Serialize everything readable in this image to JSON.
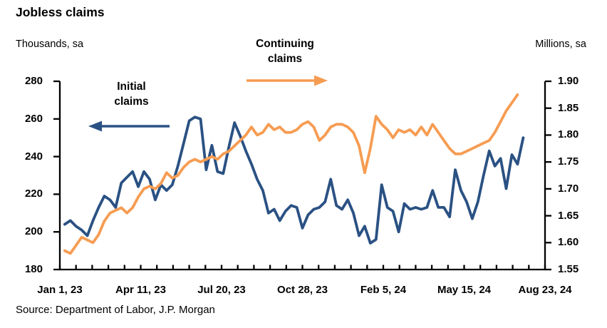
{
  "chart_data": {
    "type": "line",
    "title": "Jobless claims",
    "left_axis_label": "Thousands, sa",
    "right_axis_label": "Millions, sa",
    "source": "Source: Department of Labor, J.P. Morgan",
    "legend": {
      "initial": {
        "label_lines": [
          "Initial",
          "claims"
        ],
        "arrow_direction": "left"
      },
      "continuing": {
        "label_lines": [
          "Continuing",
          "claims"
        ],
        "arrow_direction": "right"
      }
    },
    "x_axis": {
      "unit": "weekly, days since Jan 1 2023",
      "range": [
        0,
        600
      ],
      "minor_tick_interval": 20,
      "label_days": [
        0,
        100,
        200,
        300,
        400,
        500,
        600
      ],
      "label_texts": [
        "Jan 1, 23",
        "Apr 11, 23",
        "Jul 20, 23",
        "Oct 28, 23",
        "Feb 5, 24",
        "May 15, 24",
        "Aug 23, 24"
      ]
    },
    "left_y": {
      "min": 180,
      "max": 280,
      "tick_values": [
        280,
        260,
        240,
        220,
        200,
        180
      ],
      "tick_labels": [
        "280",
        "260",
        "240",
        "220",
        "200",
        "180"
      ]
    },
    "right_y": {
      "min": 1.55,
      "max": 1.9,
      "tick_values": [
        1.9,
        1.85,
        1.8,
        1.75,
        1.7,
        1.65,
        1.6,
        1.55
      ],
      "tick_labels": [
        "1.90",
        "1.85",
        "1.80",
        "1.75",
        "1.70",
        "1.65",
        "1.60",
        "1.55"
      ]
    },
    "series": [
      {
        "name": "Initial claims",
        "axis": "left",
        "color": "#2A5183",
        "start_day": 6,
        "step_days": 7,
        "values": [
          204,
          206,
          203,
          201,
          198,
          206,
          213,
          219,
          217,
          213,
          226,
          229,
          232,
          224,
          232,
          228,
          217,
          225,
          222,
          225,
          235,
          247,
          259,
          261,
          260,
          233,
          246,
          232,
          231,
          245,
          258,
          251,
          243,
          236,
          228,
          222,
          210,
          212,
          206,
          211,
          214,
          213,
          202,
          209,
          212,
          213,
          216,
          228,
          214,
          212,
          217,
          210,
          198,
          203,
          194,
          196,
          225,
          213,
          211,
          200,
          215,
          212,
          213,
          212,
          213,
          222,
          213,
          213,
          208,
          233,
          222,
          216,
          207,
          216,
          230,
          243,
          235,
          239,
          223,
          241,
          236,
          250
        ]
      },
      {
        "name": "Continuing claims",
        "axis": "right",
        "color": "#F69C52",
        "start_day": 6,
        "step_days": 7,
        "values": [
          1.585,
          1.58,
          1.595,
          1.61,
          1.605,
          1.6,
          1.615,
          1.64,
          1.655,
          1.66,
          1.665,
          1.655,
          1.665,
          1.685,
          1.7,
          1.705,
          1.7,
          1.71,
          1.73,
          1.72,
          1.725,
          1.74,
          1.75,
          1.755,
          1.75,
          1.755,
          1.76,
          1.755,
          1.765,
          1.77,
          1.78,
          1.79,
          1.8,
          1.815,
          1.8,
          1.805,
          1.82,
          1.81,
          1.815,
          1.805,
          1.805,
          1.81,
          1.82,
          1.825,
          1.815,
          1.79,
          1.8,
          1.815,
          1.82,
          1.82,
          1.815,
          1.805,
          1.78,
          1.73,
          1.775,
          1.835,
          1.82,
          1.81,
          1.795,
          1.81,
          1.805,
          1.81,
          1.8,
          1.815,
          1.8,
          1.82,
          1.805,
          1.79,
          1.775,
          1.765,
          1.765,
          1.77,
          1.775,
          1.78,
          1.785,
          1.79,
          1.805,
          1.825,
          1.845,
          1.86,
          1.875
        ]
      }
    ]
  }
}
